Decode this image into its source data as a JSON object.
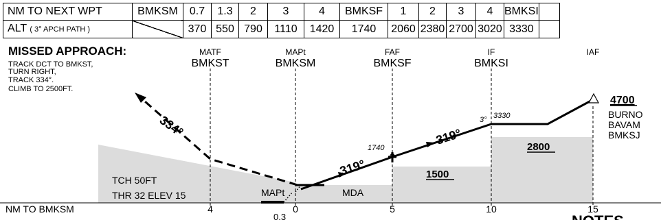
{
  "table": {
    "row1_label": "NM TO NEXT WPT",
    "row1_cells": [
      "BMKSM",
      "0.7",
      "1.3",
      "2",
      "3",
      "4",
      "BMKSF",
      "1",
      "2",
      "3",
      "4",
      "BMKSI",
      ""
    ],
    "row2_label_main": "ALT",
    "row2_label_small": "( 3° APCH PATH )",
    "row2_cells": [
      "370",
      "550",
      "790",
      "1110",
      "1420",
      "1740",
      "2060",
      "2380",
      "2700",
      "3020",
      "3330",
      ""
    ]
  },
  "missed_approach": {
    "title": "MISSED APPROACH:",
    "lines": [
      "TRACK DCT TO BMKST,",
      "TURN RIGHT,",
      "TRACK 334°.",
      "CLIMB TO 2500FT."
    ]
  },
  "fixes": [
    {
      "role": "MATF",
      "name": "BMKST"
    },
    {
      "role": "MAPt",
      "name": "BMKSM"
    },
    {
      "role": "FAF",
      "name": "BMKSF"
    },
    {
      "role": "IF",
      "name": "BMKSI"
    },
    {
      "role": "IAF",
      "name": ""
    }
  ],
  "labels": {
    "track_334": "334°",
    "track_319_a": "319°",
    "track_319_b": "319°",
    "alt_1740": "1740",
    "path_angle": "3°",
    "alt_3330": "3330",
    "iaf_alt": "4700",
    "iaf_fixes": [
      "BURNO",
      "BAVAM",
      "BMKSJ"
    ],
    "msa_2800": "2800",
    "msa_1500": "1500",
    "tch": "TCH 50FT",
    "thr": "THR 32 ELEV 15",
    "mapt": "MAPt",
    "mda": "MDA",
    "dist_axis_label": "NM TO BMKSM",
    "dist_ticks": [
      "4",
      "0",
      "5",
      "10",
      "15"
    ],
    "dist_03": "0.3",
    "notes_partial": "NOTES"
  },
  "colors": {
    "terrain": "#dcdcdc",
    "ink": "#000000"
  }
}
